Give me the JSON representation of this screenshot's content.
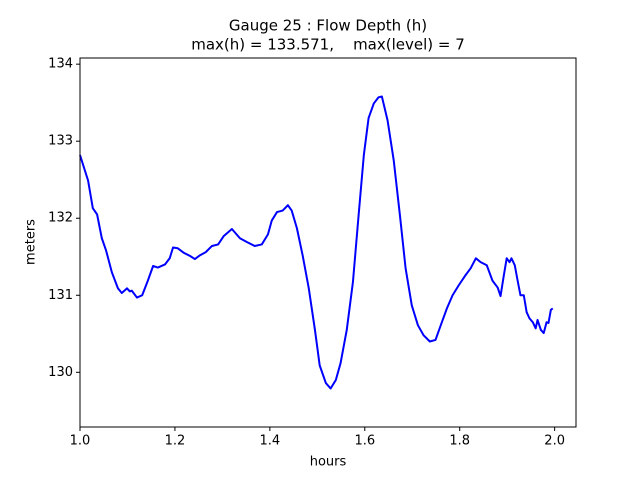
{
  "chart_data": {
    "type": "line",
    "title": "Gauge 25 : Flow Depth (h)",
    "subtitle": "max(h) = 133.571,    max(level) = 7",
    "xlabel": "hours",
    "ylabel": "meters",
    "xlim": [
      1.0,
      2.045
    ],
    "ylim": [
      129.29,
      134.08
    ],
    "xticks": [
      {
        "value": 1,
        "label": "1.0"
      },
      1.2,
      1.4,
      1.6,
      1.8,
      {
        "value": 2,
        "label": "2.0"
      }
    ],
    "yticks": [
      130,
      131,
      132,
      133,
      134
    ],
    "grid": false,
    "x": [
      1.0,
      1.017,
      1.027,
      1.036,
      1.046,
      1.055,
      1.067,
      1.08,
      1.088,
      1.099,
      1.105,
      1.109,
      1.12,
      1.131,
      1.143,
      1.154,
      1.164,
      1.179,
      1.189,
      1.196,
      1.206,
      1.219,
      1.232,
      1.242,
      1.253,
      1.265,
      1.278,
      1.291,
      1.303,
      1.32,
      1.337,
      1.352,
      1.368,
      1.383,
      1.396,
      1.404,
      1.415,
      1.427,
      1.438,
      1.446,
      1.457,
      1.469,
      1.482,
      1.495,
      1.505,
      1.518,
      1.528,
      1.539,
      1.549,
      1.562,
      1.575,
      1.587,
      1.598,
      1.608,
      1.619,
      1.629,
      1.636,
      1.648,
      1.661,
      1.674,
      1.686,
      1.699,
      1.712,
      1.724,
      1.737,
      1.749,
      1.76,
      1.773,
      1.785,
      1.798,
      1.811,
      1.823,
      1.834,
      1.844,
      1.857,
      1.869,
      1.88,
      1.886,
      1.893,
      1.899,
      1.905,
      1.909,
      1.916,
      1.922,
      1.928,
      1.935,
      1.941,
      1.947,
      1.954,
      1.96,
      1.964,
      1.971,
      1.977,
      1.983,
      1.987,
      1.992,
      1.996
    ],
    "series": [
      {
        "color": "#0000ff",
        "values": [
          132.82,
          132.49,
          132.13,
          132.05,
          131.74,
          131.58,
          131.3,
          131.09,
          131.03,
          131.09,
          131.05,
          131.06,
          130.97,
          131.0,
          131.19,
          131.38,
          131.36,
          131.4,
          131.48,
          131.62,
          131.61,
          131.55,
          131.51,
          131.47,
          131.52,
          131.56,
          131.64,
          131.66,
          131.77,
          131.86,
          131.74,
          131.69,
          131.64,
          131.66,
          131.79,
          131.97,
          132.08,
          132.1,
          132.17,
          132.1,
          131.87,
          131.52,
          131.09,
          130.55,
          130.09,
          129.86,
          129.79,
          129.9,
          130.12,
          130.55,
          131.17,
          132.04,
          132.82,
          133.3,
          133.49,
          133.57,
          133.58,
          133.27,
          132.75,
          132.04,
          131.35,
          130.87,
          130.61,
          130.48,
          130.4,
          130.42,
          130.61,
          130.83,
          131.0,
          131.13,
          131.25,
          131.35,
          131.48,
          131.43,
          131.39,
          131.19,
          131.1,
          130.99,
          131.26,
          131.48,
          131.43,
          131.48,
          131.39,
          131.19,
          131.0,
          131.0,
          130.78,
          130.7,
          130.65,
          130.57,
          130.68,
          130.55,
          130.51,
          130.65,
          130.64,
          130.81,
          130.83
        ]
      }
    ]
  }
}
